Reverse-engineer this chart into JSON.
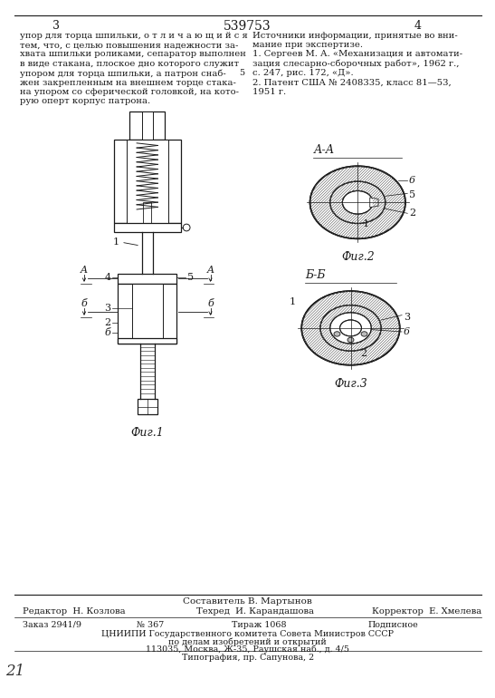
{
  "page_number_center": "539753",
  "page_left": "3",
  "page_right": "4",
  "text_left": [
    "упор для торца шпильки, о т л и ч а ю щ и й с я",
    "тем, что, с целью повышения надежности за-",
    "хвата шпильки роликами, сепаратор выполнен",
    "в виде стакана, плоское дно которого служит",
    "упором для торца шпильки, а патрон снаб-",
    "жен закрепленным на внешнем торце стака-",
    "на упором со сферической головкой, на кото-",
    "рую оперт корпус патрона."
  ],
  "text_right_title": "Источники информации, принятые во вни-",
  "text_right_title2": "мание при экспертизе.",
  "text_right_body": [
    "1. Сергеев М. А. «Механизация и автомати-",
    "зация слесарно-сборочных работ», 1962 г.,",
    "с. 247, рис. 172, «Д».",
    "2. Патент США № 2408335, класс 81—53,",
    "1951 г."
  ],
  "line_number_5": "5",
  "fig1_label": "Фиг.1",
  "fig2_label": "Фиг.2",
  "fig3_label": "Фиг.3",
  "section_aa": "А-А",
  "section_bb": "Б-Б",
  "footer_line1": "Составитель В. Мартынов",
  "footer_editor": "Редактор  Н. Козлова",
  "footer_tech": "Техред  И. Карандашова",
  "footer_corrector": "Корректор  Е. Хмелева",
  "footer_order": "Заказ 2941/9",
  "footer_num": "№ 367",
  "footer_tirazh": "Тираж 1068",
  "footer_podpisnoe": "Подписное",
  "footer_org": "ЦНИИПИ Государственного комитета Совета Министров СССР",
  "footer_org2": "по делам изобретений и открытий",
  "footer_addr": "113035, Москва, Ж-35, Раушская наб., д. 4/5",
  "footer_print": "Типография, пр. Сапунова, 2",
  "handwritten": "21",
  "bg_color": "#ffffff",
  "text_color": "#1a1a1a",
  "line_color": "#1a1a1a",
  "hatch_color": "#555555",
  "fig_color": "#444444"
}
